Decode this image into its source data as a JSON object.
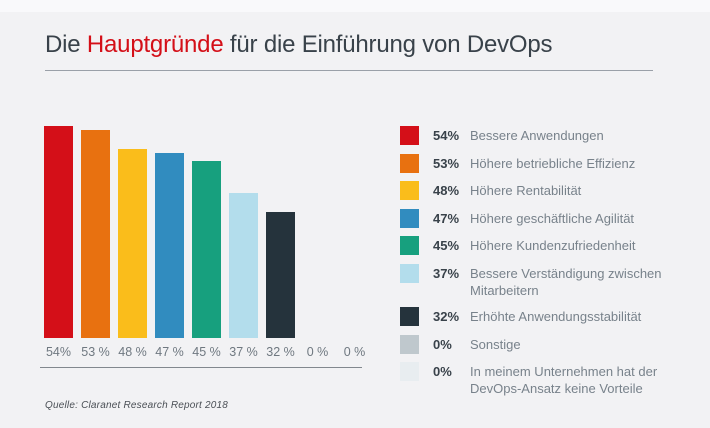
{
  "title": {
    "prefix": "Die ",
    "highlight": "Hauptgründe",
    "suffix": " für die Einführung von DevOps"
  },
  "source": "Quelle: Claranet Research Report 2018",
  "colors": {
    "background": "#f2f2f4",
    "title_text": "#39424a",
    "title_highlight": "#d40f18",
    "bar_label_text": "#6f7880",
    "legend_label_text": "#78828b",
    "rule": "#9aa0a8"
  },
  "chart_data": {
    "type": "bar",
    "title": "Die Hauptgründe für die Einführung von DevOps",
    "xlabel": "",
    "ylabel": "",
    "ylim": [
      0,
      55
    ],
    "grid": false,
    "legend_position": "right",
    "categories": [
      "Bessere Anwendungen",
      "Höhere betriebliche Effizienz",
      "Höhere Rentabilität",
      "Höhere geschäftliche Agilität",
      "Höhere Kundenzufriedenheit",
      "Bessere Verständigung zwischen Mitarbeitern",
      "Erhöhte Anwendungsstabilität",
      "Sonstige",
      "In meinem Unternehmen hat der DevOps-Ansatz keine Vorteile"
    ],
    "values": [
      54,
      53,
      48,
      47,
      45,
      37,
      32,
      0,
      0
    ],
    "bar_labels": [
      "54%",
      "53 %",
      "48 %",
      "47 %",
      "45 %",
      "37 %",
      "32 %",
      "0 %",
      "0 %"
    ],
    "bar_colors": [
      "#d40f18",
      "#e87110",
      "#fabd1b",
      "#318cbf",
      "#17a07e",
      "#b3ddec",
      "#25333c",
      "#bfc8cd",
      "#e8edf0"
    ],
    "legend": [
      {
        "pct": "54%",
        "label": "Bessere Anwendungen",
        "color": "#d40f18"
      },
      {
        "pct": "53%",
        "label": "Höhere betriebliche Effizienz",
        "color": "#e87110"
      },
      {
        "pct": "48%",
        "label": "Höhere Rentabilität",
        "color": "#fabd1b"
      },
      {
        "pct": "47%",
        "label": "Höhere geschäftliche Agilität",
        "color": "#318cbf"
      },
      {
        "pct": "45%",
        "label": "Höhere Kundenzufriedenheit",
        "color": "#17a07e"
      },
      {
        "pct": "37%",
        "label": "Bessere Verständigung zwischen Mitarbeitern",
        "color": "#b3ddec"
      },
      {
        "pct": "32%",
        "label": "Erhöhte Anwendungsstabilität",
        "color": "#25333c"
      },
      {
        "pct": "0%",
        "label": "Sonstige",
        "color": "#bfc8cd"
      },
      {
        "pct": "0%",
        "label": "In meinem Unternehmen hat der DevOps-Ansatz keine Vorteile",
        "color": "#e8edf0"
      }
    ]
  }
}
